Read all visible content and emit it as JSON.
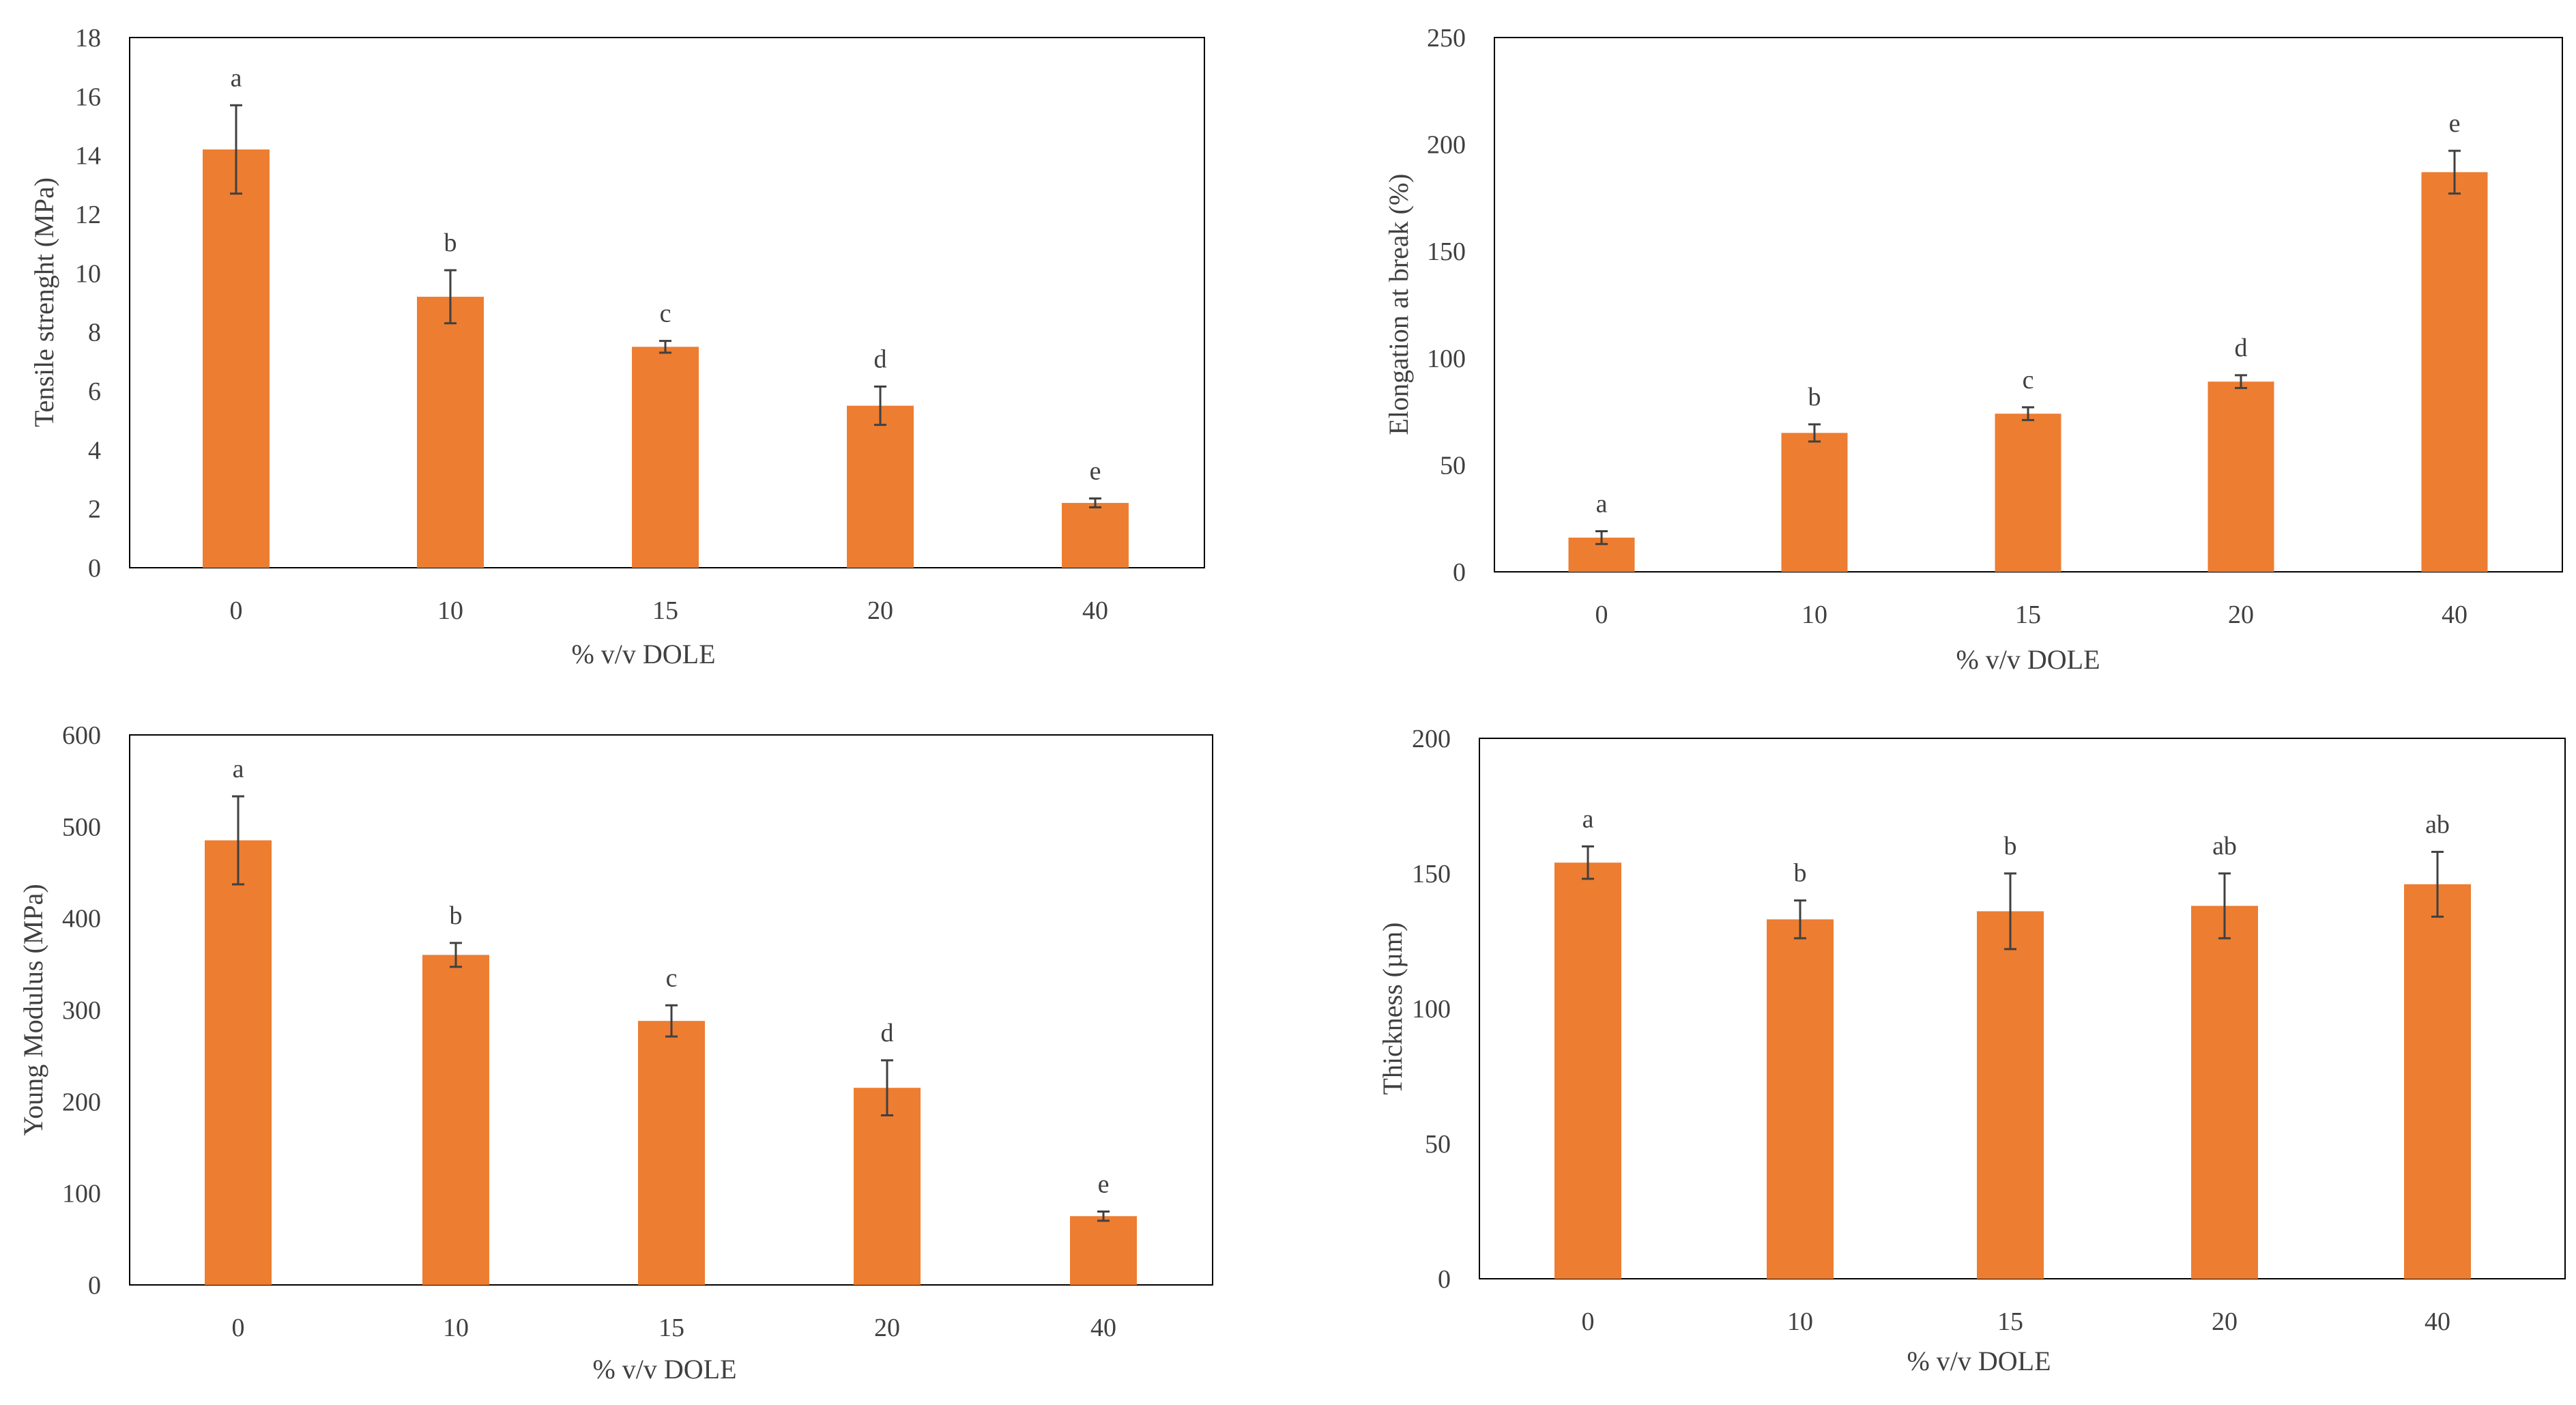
{
  "colors": {
    "bar": "#ED7D31",
    "axis": "#000000",
    "text": "#404040",
    "errorbar": "#404040"
  },
  "chart_data": [
    {
      "type": "bar",
      "title": "",
      "xlabel": "% v/v DOLE",
      "ylabel": "Tensile strenght (MPa)",
      "categories": [
        "0",
        "10",
        "15",
        "20",
        "40"
      ],
      "values": [
        14.2,
        9.2,
        7.5,
        5.5,
        2.2
      ],
      "errors": [
        1.5,
        0.9,
        0.2,
        0.65,
        0.15
      ],
      "significance": [
        "a",
        "b",
        "c",
        "d",
        "e"
      ],
      "ylim": [
        0,
        18
      ],
      "yticks": [
        0,
        2,
        4,
        6,
        8,
        10,
        12,
        14,
        16,
        18
      ],
      "ytick_labels": [
        "0",
        "2",
        "4",
        "6",
        "8",
        "10",
        "12",
        "14",
        "16",
        "18"
      ]
    },
    {
      "type": "bar",
      "title": "",
      "xlabel": "% v/v DOLE",
      "ylabel": "Elongation at break (%)",
      "categories": [
        "0",
        "10",
        "15",
        "20",
        "40"
      ],
      "values": [
        16,
        65,
        74,
        89,
        187
      ],
      "errors": [
        3,
        4,
        3,
        3,
        10
      ],
      "significance": [
        "a",
        "b",
        "c",
        "d",
        "e"
      ],
      "ylim": [
        0,
        250
      ],
      "yticks": [
        0,
        50,
        100,
        150,
        200,
        250
      ],
      "ytick_labels": [
        "0",
        "50",
        "100",
        "150",
        "200",
        "250"
      ]
    },
    {
      "type": "bar",
      "title": "",
      "xlabel": "% v/v DOLE",
      "ylabel": "Young Modulus (MPa)",
      "categories": [
        "0",
        "10",
        "15",
        "20",
        "40"
      ],
      "values": [
        485,
        360,
        288,
        215,
        75
      ],
      "errors": [
        48,
        13,
        17,
        30,
        5
      ],
      "significance": [
        "a",
        "b",
        "c",
        "d",
        "e"
      ],
      "ylim": [
        0,
        600
      ],
      "yticks": [
        0,
        100,
        200,
        300,
        400,
        500,
        600
      ],
      "ytick_labels": [
        "0",
        "100",
        "200",
        "300",
        "400",
        "500",
        "600"
      ]
    },
    {
      "type": "bar",
      "title": "",
      "xlabel": "% v/v DOLE",
      "ylabel": "Thickness (µm)",
      "categories": [
        "0",
        "10",
        "15",
        "20",
        "40"
      ],
      "values": [
        154,
        133,
        136,
        138,
        146
      ],
      "errors": [
        6,
        7,
        14,
        12,
        12
      ],
      "significance": [
        "a",
        "b",
        "b",
        "ab",
        "ab"
      ],
      "ylim": [
        0,
        200
      ],
      "yticks": [
        0,
        50,
        100,
        150,
        200
      ],
      "ytick_labels": [
        "0",
        "50",
        "100",
        "150",
        "200"
      ]
    }
  ]
}
